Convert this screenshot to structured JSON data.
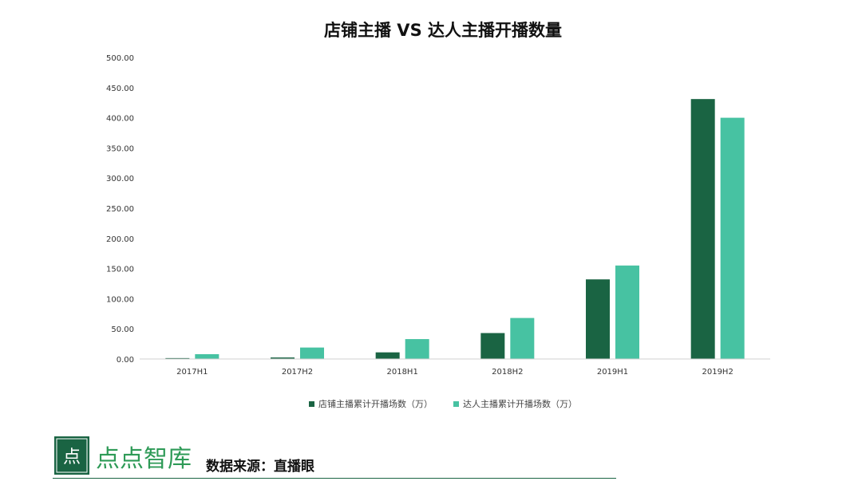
{
  "chart_data": {
    "type": "bar",
    "title": "店铺主播 VS 达人主播开播数量",
    "categories": [
      "2017H1",
      "2017H2",
      "2018H1",
      "2018H2",
      "2019H1",
      "2019H2"
    ],
    "series": [
      {
        "name": "店铺主播累计开播场数（万）",
        "color": "#1a6443",
        "values": [
          1.5,
          2.5,
          11,
          43,
          132,
          431
        ]
      },
      {
        "name": "达人主播累计开播场数（万）",
        "color": "#47c2a2",
        "values": [
          8,
          19,
          33,
          68,
          155,
          400
        ]
      }
    ],
    "yticks": [
      "0.00",
      "50.00",
      "100.00",
      "150.00",
      "200.00",
      "250.00",
      "300.00",
      "350.00",
      "400.00",
      "450.00",
      "500.00"
    ],
    "ylim": [
      0,
      500
    ],
    "grid": false,
    "legend_position": "bottom"
  },
  "footer": {
    "logo_glyph": "点",
    "brand": "点点智库",
    "source": "数据来源：直播眼"
  }
}
